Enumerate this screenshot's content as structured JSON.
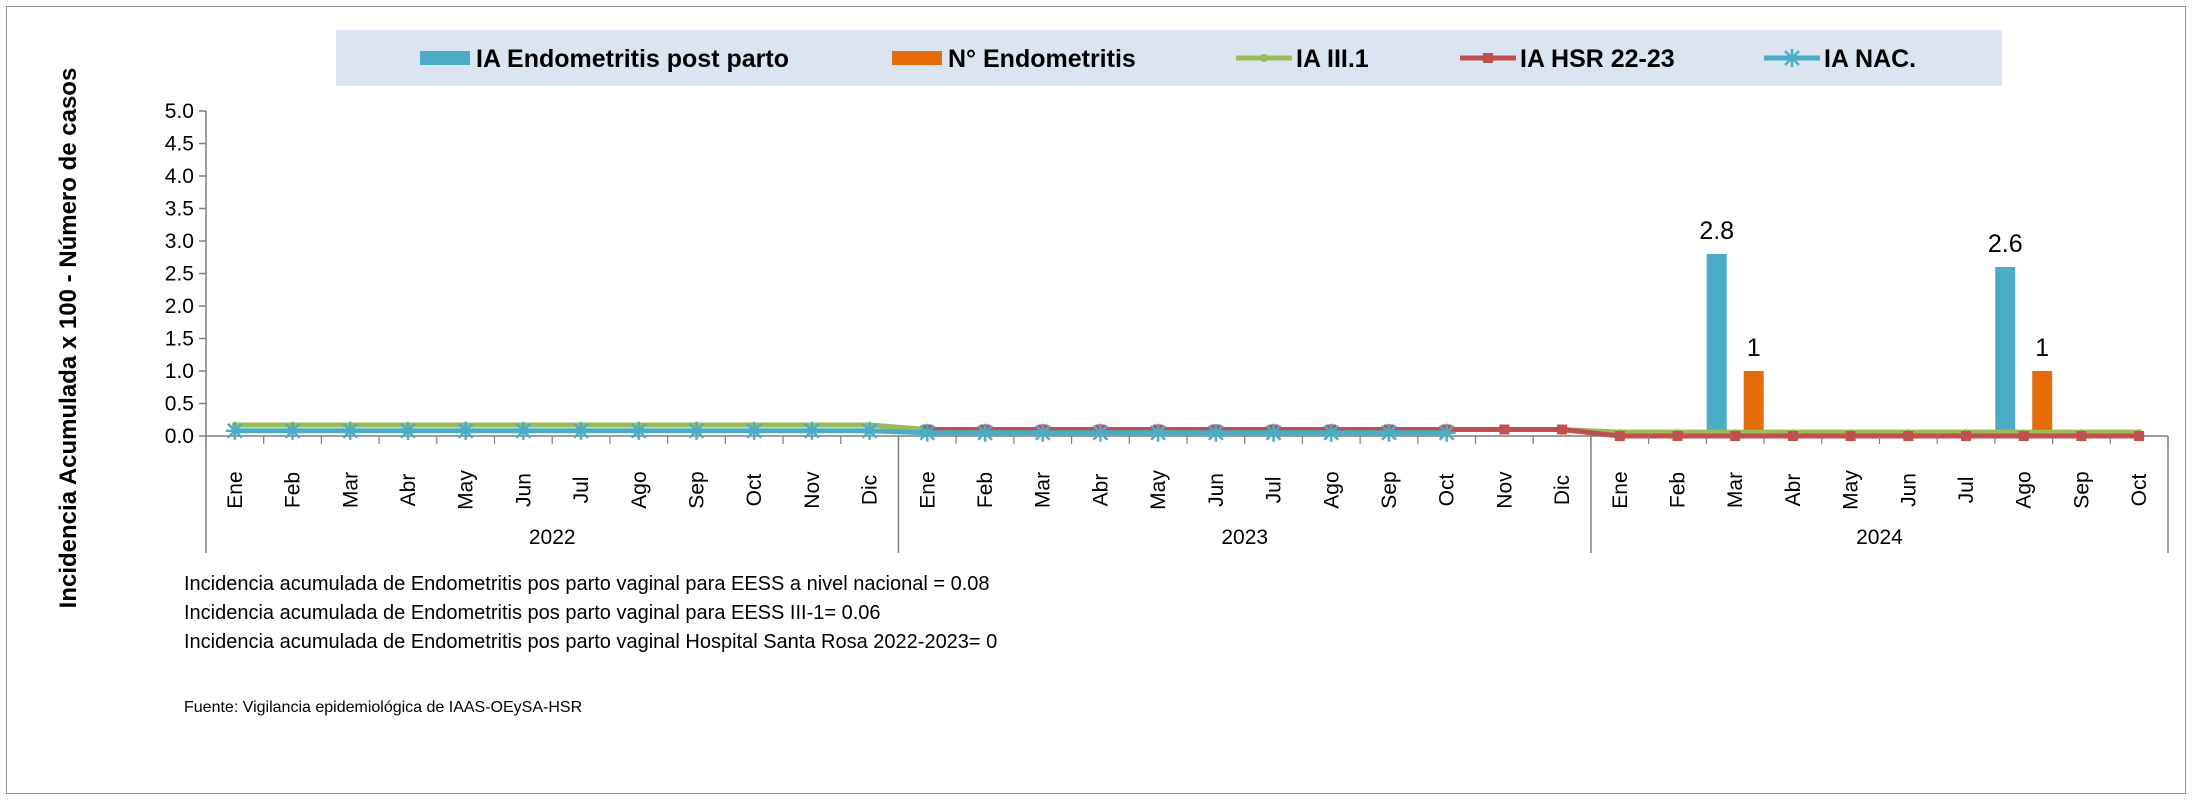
{
  "chart_data": {
    "type": "bar",
    "ylabel": "Incidencia Acumulada x 100 - Número de casos",
    "ylim": [
      0,
      5.0
    ],
    "yticks": [
      "0.0",
      "0.5",
      "1.0",
      "1.5",
      "2.0",
      "2.5",
      "3.0",
      "3.5",
      "4.0",
      "4.5",
      "5.0"
    ],
    "legend_position": "top",
    "groups": [
      {
        "label": "2022",
        "months": [
          "Ene",
          "Feb",
          "Mar",
          "Abr",
          "May",
          "Jun",
          "Jul",
          "Ago",
          "Sep",
          "Oct",
          "Nov",
          "Dic"
        ]
      },
      {
        "label": "2023",
        "months": [
          "Ene",
          "Feb",
          "Mar",
          "Abr",
          "May",
          "Jun",
          "Jul",
          "Ago",
          "Sep",
          "Oct",
          "Nov",
          "Dic"
        ]
      },
      {
        "label": "2024",
        "months": [
          "Ene",
          "Feb",
          "Mar",
          "Abr",
          "May",
          "Jun",
          "Jul",
          "Ago",
          "Sep",
          "Oct"
        ]
      }
    ],
    "series": [
      {
        "name": "IA Endometritis post parto",
        "kind": "bar",
        "color": "#4bacc6",
        "values": [
          0,
          0,
          0,
          0,
          0,
          0,
          0,
          0,
          0,
          0,
          0,
          0,
          0,
          0,
          0,
          0,
          0,
          0,
          0,
          0,
          0,
          0,
          0,
          0,
          0,
          0,
          2.8,
          0,
          0,
          0,
          0,
          2.6,
          0,
          0
        ],
        "labels": {
          "26": "2.8",
          "31": "2.6"
        }
      },
      {
        "name": "N°  Endometritis",
        "kind": "bar",
        "color": "#e46c0a",
        "values": [
          0,
          0,
          0,
          0,
          0,
          0,
          0,
          0,
          0,
          0,
          0,
          0,
          0,
          0,
          0,
          0,
          0,
          0,
          0,
          0,
          0,
          0,
          0,
          0,
          0,
          0,
          1,
          0,
          0,
          0,
          0,
          1,
          0,
          0
        ],
        "labels": {
          "26": "1",
          "31": "1"
        }
      },
      {
        "name": "IA  III.1",
        "kind": "line",
        "color": "#9bbb59",
        "values": [
          0.17,
          0.17,
          0.17,
          0.17,
          0.17,
          0.17,
          0.17,
          0.17,
          0.17,
          0.17,
          0.17,
          0.17,
          0.1,
          0.1,
          0.1,
          0.1,
          0.1,
          0.1,
          0.1,
          0.1,
          0.1,
          0.1,
          0.1,
          0.1,
          0.06,
          0.06,
          0.06,
          0.06,
          0.06,
          0.06,
          0.06,
          0.06,
          0.06,
          0.06
        ]
      },
      {
        "name": "IA HSR 22-23",
        "kind": "line",
        "color": "#c0504d",
        "values": [
          null,
          null,
          null,
          null,
          null,
          null,
          null,
          null,
          null,
          null,
          null,
          null,
          0.1,
          0.1,
          0.1,
          0.1,
          0.1,
          0.1,
          0.1,
          0.1,
          0.1,
          0.1,
          0.1,
          0.1,
          0,
          0,
          0,
          0,
          0,
          0,
          0,
          0,
          0,
          0
        ]
      },
      {
        "name": "IA  NAC.",
        "kind": "line",
        "color": "#4bacc6",
        "values": [
          0.08,
          0.08,
          0.08,
          0.08,
          0.08,
          0.08,
          0.08,
          0.08,
          0.08,
          0.08,
          0.08,
          0.08,
          0.05,
          0.05,
          0.05,
          0.05,
          0.05,
          0.05,
          0.05,
          0.05,
          0.05,
          0.05,
          null,
          null,
          null,
          null,
          null,
          null,
          null,
          null,
          null,
          null,
          null,
          null
        ]
      }
    ],
    "notes": [
      "Incidencia acumulada de Endometritis pos parto vaginal para EESS a nivel nacional = 0.08",
      "Incidencia acumulada de Endometritis pos parto vaginal para EESS III-1= 0.06",
      "Incidencia acumulada de Endometritis pos parto vaginal Hospital Santa Rosa  2022-2023= 0"
    ],
    "source": "Fuente: Vigilancia epidemiológica de IAAS-OEySA-HSR"
  }
}
